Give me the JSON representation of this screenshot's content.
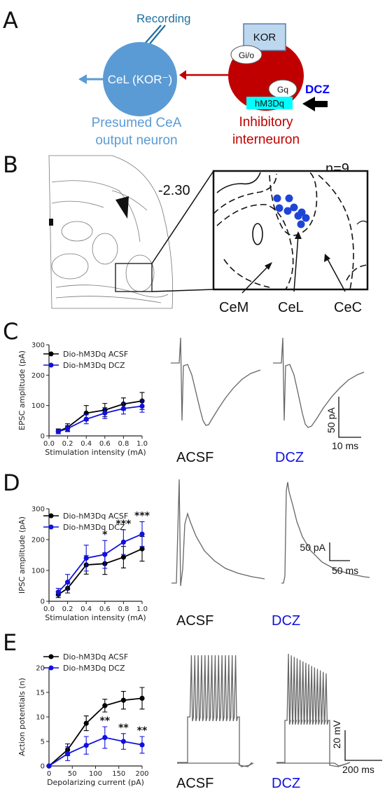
{
  "panel_a": {
    "label": "A",
    "recording_label": "Recording",
    "cel_label": "CeL (KOR⁻)",
    "cel_caption_line1": "Presumed CeA",
    "cel_caption_line2": "output neuron",
    "kor_label": "KOR",
    "gio_label": "Gi/o",
    "gq_label": "Gq",
    "hm3dq_label": "hM3Dq",
    "dcz_label": "DCZ",
    "inter_caption_line1": "Inhibitory",
    "inter_caption_line2": "interneuron",
    "colors": {
      "blue_cell": "#5b9bd5",
      "red_cell": "#c00000",
      "receptor_cyan": "#00ffff",
      "kor_box": "#bdd7ee",
      "dcz_blue": "#0000ff"
    }
  },
  "panel_b": {
    "label": "B",
    "bregma": "-2.30",
    "n_label": "n=9",
    "region_cem": "CeM",
    "region_cel": "CeL",
    "region_cec": "CeC",
    "dot_color": "#1f45d6",
    "dot_count": 9
  },
  "panel_c": {
    "label": "C",
    "trace_label_acsf": "ACSF",
    "trace_label_dcz": "DCZ",
    "scalebar_y": "50 pA",
    "scalebar_x": "10 ms"
  },
  "panel_d": {
    "label": "D",
    "trace_label_acsf": "ACSF",
    "trace_label_dcz": "DCZ",
    "scalebar_y": "50 pA",
    "scalebar_x": "50 ms"
  },
  "panel_e": {
    "label": "E",
    "trace_label_acsf": "ACSF",
    "trace_label_dcz": "DCZ",
    "scalebar_y": "20 mV",
    "scalebar_x": "200 ms"
  },
  "chart_data": [
    {
      "type": "line",
      "panel": "C",
      "xlabel": "Stimulation intensity (mA)",
      "ylabel": "EPSC amplitude (pA)",
      "xlim": [
        0,
        1.0
      ],
      "ylim": [
        0,
        300
      ],
      "xticks": [
        "0.0",
        "0.2",
        "0.4",
        "0.6",
        "0.8",
        "1.0"
      ],
      "yticks": [
        "0",
        "100",
        "200",
        "300"
      ],
      "legend_position": "top-left",
      "x": [
        0.1,
        0.2,
        0.4,
        0.6,
        0.8,
        1.0
      ],
      "series": [
        {
          "name": "Dio-hM3Dq ACSF",
          "color": "#000000",
          "values": [
            15,
            28,
            75,
            85,
            105,
            115
          ],
          "err": [
            8,
            12,
            25,
            22,
            20,
            28
          ]
        },
        {
          "name": "Dio-hM3Dq DCZ",
          "color": "#1010e0",
          "values": [
            14,
            24,
            55,
            75,
            90,
            98
          ],
          "err": [
            7,
            10,
            15,
            18,
            18,
            20
          ]
        }
      ],
      "annotations": []
    },
    {
      "type": "line",
      "panel": "D",
      "xlabel": "Stimulation intensity (mA)",
      "ylabel": "IPSC amplitude (pA)",
      "xlim": [
        0,
        1.0
      ],
      "ylim": [
        0,
        300
      ],
      "xticks": [
        "0.0",
        "0.2",
        "0.4",
        "0.6",
        "0.8",
        "1.0"
      ],
      "yticks": [
        "0",
        "100",
        "200",
        "300"
      ],
      "legend_position": "top-left",
      "x": [
        0.1,
        0.2,
        0.4,
        0.6,
        0.8,
        1.0
      ],
      "series": [
        {
          "name": "Dio-hM3Dq ACSF",
          "color": "#000000",
          "values": [
            22,
            42,
            118,
            122,
            143,
            170
          ],
          "err": [
            10,
            15,
            30,
            35,
            35,
            40
          ]
        },
        {
          "name": "Dio-hM3Dq DCZ",
          "color": "#1010e0",
          "values": [
            30,
            62,
            140,
            152,
            192,
            218
          ],
          "err": [
            12,
            25,
            42,
            45,
            40,
            40
          ]
        }
      ],
      "annotations": [
        {
          "x": 0.6,
          "text": "*"
        },
        {
          "x": 0.8,
          "text": "***"
        },
        {
          "x": 1.0,
          "text": "***"
        }
      ]
    },
    {
      "type": "line",
      "panel": "E",
      "xlabel": "Depolarizing current (pA)",
      "ylabel": "Action potentials (n)",
      "xlim": [
        0,
        200
      ],
      "ylim": [
        0,
        20
      ],
      "xticks": [
        "0",
        "50",
        "100",
        "150",
        "200"
      ],
      "yticks": [
        "0",
        "5",
        "10",
        "15",
        "20"
      ],
      "legend_position": "top-left",
      "x": [
        0,
        40,
        80,
        120,
        160,
        200
      ],
      "series": [
        {
          "name": "Dio-hM3Dq ACSF",
          "color": "#000000",
          "values": [
            0,
            3.3,
            8.7,
            12.3,
            13.4,
            13.8
          ],
          "err": [
            0,
            1.2,
            1.5,
            1.3,
            1.8,
            2.2
          ]
        },
        {
          "name": "Dio-hM3Dq DCZ",
          "color": "#1010e0",
          "values": [
            0,
            2.5,
            4.2,
            5.8,
            5.0,
            4.3
          ],
          "err": [
            0,
            1.4,
            1.8,
            2.2,
            1.6,
            1.7
          ]
        }
      ],
      "annotations": [
        {
          "x": 120,
          "text": "**"
        },
        {
          "x": 160,
          "text": "**"
        },
        {
          "x": 200,
          "text": "**"
        }
      ]
    }
  ]
}
